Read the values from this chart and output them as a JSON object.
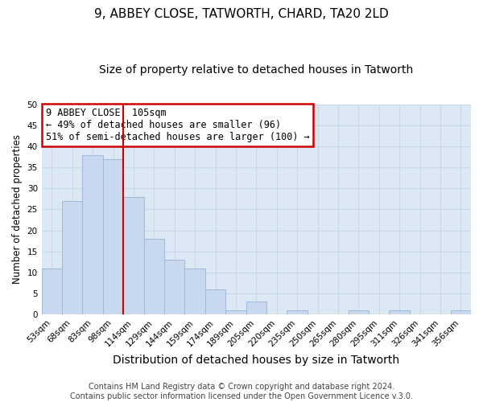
{
  "title": "9, ABBEY CLOSE, TATWORTH, CHARD, TA20 2LD",
  "subtitle": "Size of property relative to detached houses in Tatworth",
  "xlabel": "Distribution of detached houses by size in Tatworth",
  "ylabel": "Number of detached properties",
  "categories": [
    "53sqm",
    "68sqm",
    "83sqm",
    "98sqm",
    "114sqm",
    "129sqm",
    "144sqm",
    "159sqm",
    "174sqm",
    "189sqm",
    "205sqm",
    "220sqm",
    "235sqm",
    "250sqm",
    "265sqm",
    "280sqm",
    "295sqm",
    "311sqm",
    "326sqm",
    "341sqm",
    "356sqm"
  ],
  "values": [
    11,
    27,
    38,
    37,
    28,
    18,
    13,
    11,
    6,
    1,
    3,
    0,
    1,
    0,
    0,
    1,
    0,
    1,
    0,
    0,
    1
  ],
  "bar_color": "#c8d8ee",
  "bar_edge_color": "#a0b8d8",
  "vline_color": "#cc0000",
  "annotation_text": "9 ABBEY CLOSE: 105sqm\n← 49% of detached houses are smaller (96)\n51% of semi-detached houses are larger (100) →",
  "annotation_box_color": "#ffffff",
  "annotation_box_edge_color": "#cc0000",
  "ylim": [
    0,
    50
  ],
  "yticks": [
    0,
    5,
    10,
    15,
    20,
    25,
    30,
    35,
    40,
    45,
    50
  ],
  "grid_color": "#c8d8e8",
  "background_color": "#dce8f4",
  "fig_background_color": "#ffffff",
  "footer_text": "Contains HM Land Registry data © Crown copyright and database right 2024.\nContains public sector information licensed under the Open Government Licence v.3.0.",
  "title_fontsize": 11,
  "subtitle_fontsize": 10,
  "xlabel_fontsize": 10,
  "ylabel_fontsize": 8.5,
  "tick_fontsize": 7.5,
  "annotation_fontsize": 8.5,
  "footer_fontsize": 7
}
